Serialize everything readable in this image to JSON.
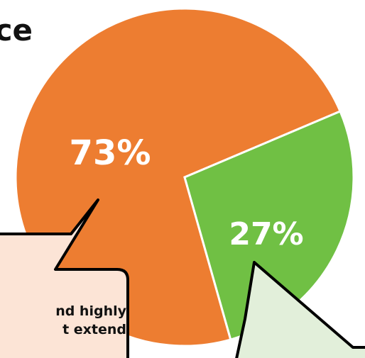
{
  "colors": {
    "slice_major": "#ED7D31",
    "slice_minor": "#70C044",
    "callout_major_fill": "#FCE4D6",
    "callout_minor_fill": "#E2EFDA",
    "outline": "#000000"
  },
  "title_fragment": "ce",
  "callout_major": {
    "line1": "nd highly",
    "line2": "t extend"
  },
  "chart_data": {
    "type": "pie",
    "values": [
      73,
      27
    ],
    "labels": [
      "73%",
      "27%"
    ]
  }
}
